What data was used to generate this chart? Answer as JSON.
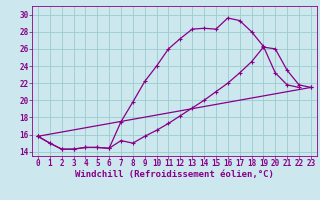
{
  "xlabel": "Windchill (Refroidissement éolien,°C)",
  "background_color": "#cce8ee",
  "grid_color": "#99cccc",
  "line_color": "#880088",
  "xlim": [
    -0.5,
    23.5
  ],
  "ylim": [
    13.5,
    31.0
  ],
  "xticks": [
    0,
    1,
    2,
    3,
    4,
    5,
    6,
    7,
    8,
    9,
    10,
    11,
    12,
    13,
    14,
    15,
    16,
    17,
    18,
    19,
    20,
    21,
    22,
    23
  ],
  "yticks": [
    14,
    16,
    18,
    20,
    22,
    24,
    26,
    28,
    30
  ],
  "line1_x": [
    0,
    1,
    2,
    3,
    4,
    5,
    6,
    7,
    8,
    9,
    10,
    11,
    12,
    13,
    14,
    15,
    16,
    17,
    18,
    19,
    20,
    21,
    22
  ],
  "line1_y": [
    15.8,
    15.0,
    14.3,
    14.3,
    14.5,
    14.5,
    14.4,
    17.5,
    19.8,
    22.2,
    24.0,
    26.0,
    27.2,
    28.3,
    28.4,
    28.3,
    29.6,
    29.3,
    28.0,
    26.3,
    23.2,
    21.8,
    21.5
  ],
  "line2_x": [
    0,
    1,
    2,
    3,
    4,
    5,
    6,
    7,
    8,
    9,
    10,
    11,
    12,
    13,
    14,
    15,
    16,
    17,
    18,
    19,
    20,
    21,
    22,
    23
  ],
  "line2_y": [
    15.8,
    15.0,
    14.3,
    14.3,
    14.5,
    14.5,
    14.4,
    15.3,
    15.0,
    15.8,
    16.5,
    17.3,
    18.2,
    19.1,
    20.0,
    21.0,
    22.0,
    23.2,
    24.5,
    26.2,
    26.0,
    23.5,
    21.8,
    21.5
  ],
  "line3_x": [
    0,
    23
  ],
  "line3_y": [
    15.8,
    21.5
  ],
  "marker": "+",
  "markersize": 3.5,
  "linewidth": 0.9,
  "xlabel_fontsize": 6.5,
  "tick_fontsize": 5.5
}
